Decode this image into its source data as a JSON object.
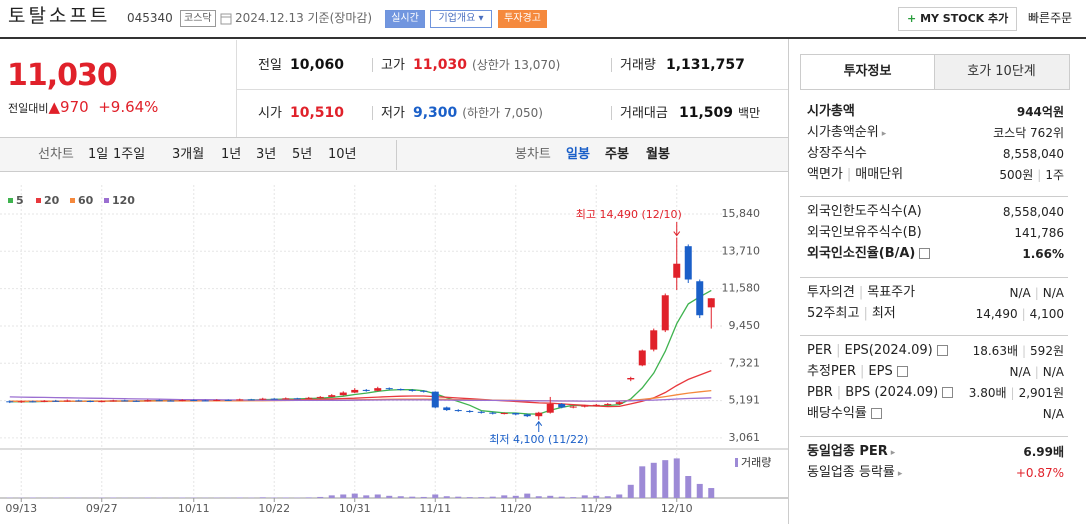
{
  "header": {
    "name": "토탈소프트",
    "code": "045340",
    "market": "코스닥",
    "date": "2024.12.13 기준(장마감)",
    "buttons": [
      "실시간",
      "기업개요",
      "투자경고"
    ],
    "mystock": "MY STOCK 추가",
    "order": "빠른주문"
  },
  "quote": {
    "price": "11,030",
    "change_label": "전일대비",
    "change": "970",
    "rate": "+9.64%",
    "fields": [
      {
        "label": "전일",
        "value": "10,060",
        "color": "#111"
      },
      {
        "label": "고가",
        "value": "11,030",
        "color": "#e0212a",
        "note": "(상한가 13,070)"
      },
      {
        "label": "거래량",
        "value": "1,131,757",
        "color": "#111"
      },
      {
        "label": "시가",
        "value": "10,510",
        "color": "#e0212a"
      },
      {
        "label": "저가",
        "value": "9,300",
        "color": "#1a5fc8",
        "note": "(하한가 7,050)"
      },
      {
        "label": "거래대금",
        "value": "11,509",
        "color": "#111",
        "unit": "백만"
      }
    ]
  },
  "tabs": {
    "line": "선차트",
    "line_periods": [
      "1일",
      "1주일",
      "3개월",
      "1년",
      "3년",
      "5년",
      "10년"
    ],
    "candle": "봉차트",
    "candle_periods": [
      "일봉",
      "주봉",
      "월봉"
    ],
    "selected": "일봉"
  },
  "info": {
    "tabs": [
      "투자정보",
      "호가 10단계"
    ],
    "groups": [
      [
        {
          "label": [
            "시가총액"
          ],
          "value": [
            "944억원"
          ],
          "bold": true
        },
        {
          "label": [
            "시가총액순위"
          ],
          "more": true,
          "value": [
            "코스닥 762위"
          ]
        },
        {
          "label": [
            "상장주식수"
          ],
          "value": [
            "8,558,040"
          ]
        },
        {
          "label": [
            "액면가",
            "매매단위"
          ],
          "value": [
            "500원",
            "1주"
          ]
        }
      ],
      [
        {
          "label": [
            "외국인한도주식수(A)"
          ],
          "value": [
            "8,558,040"
          ]
        },
        {
          "label": [
            "외국인보유주식수(B)"
          ],
          "value": [
            "141,786"
          ]
        },
        {
          "label": [
            "외국인소진율(B/A)"
          ],
          "help": true,
          "bold": true,
          "value": [
            "1.66%"
          ]
        }
      ],
      [
        {
          "label": [
            "투자의견",
            "목표주가"
          ],
          "value": [
            "N/A",
            "N/A"
          ]
        },
        {
          "label": [
            "52주최고",
            "최저"
          ],
          "value": [
            "14,490",
            "4,100"
          ]
        }
      ],
      [
        {
          "label": [
            "PER",
            "EPS(2024.09)"
          ],
          "help": true,
          "value": [
            "18.63배",
            "592원"
          ]
        },
        {
          "label": [
            "추정PER",
            "EPS"
          ],
          "help": true,
          "value": [
            "N/A",
            "N/A"
          ]
        },
        {
          "label": [
            "PBR",
            "BPS (2024.09)"
          ],
          "help": true,
          "value": [
            "3.80배",
            "2,901원"
          ]
        },
        {
          "label": [
            "배당수익률"
          ],
          "help": true,
          "value": [
            "N/A"
          ]
        }
      ],
      [
        {
          "label": [
            "동일업종 PER"
          ],
          "more": true,
          "bold": true,
          "value": [
            "6.99배"
          ]
        },
        {
          "label": [
            "동일업종 등락률"
          ],
          "more": true,
          "value": [
            "+0.87%"
          ],
          "value_color": "#e0212a"
        }
      ]
    ]
  },
  "chart_data": {
    "type": "candlestick",
    "up_color": "#e0212a",
    "down_color": "#1a5fc8",
    "volume_color": "#9d8ad6",
    "volume_label": "거래량",
    "grid": true,
    "categories": [
      null,
      "09/13",
      null,
      null,
      null,
      null,
      null,
      null,
      "09/27",
      null,
      null,
      null,
      null,
      null,
      null,
      null,
      "10/11",
      null,
      null,
      null,
      null,
      null,
      null,
      "10/22",
      null,
      null,
      null,
      null,
      null,
      null,
      "10/31",
      null,
      null,
      null,
      null,
      null,
      null,
      "11/11",
      null,
      null,
      null,
      null,
      null,
      null,
      "11/20",
      null,
      null,
      null,
      null,
      null,
      null,
      "11/29",
      null,
      null,
      null,
      null,
      null,
      null,
      "12/10",
      null,
      null,
      null
    ],
    "open": [
      5150,
      5100,
      5150,
      5120,
      5180,
      5150,
      5200,
      5170,
      5130,
      5160,
      5200,
      5180,
      5150,
      5210,
      5190,
      5170,
      5220,
      5200,
      5180,
      5230,
      5200,
      5260,
      5240,
      5300,
      5280,
      5320,
      5300,
      5350,
      5400,
      5500,
      5650,
      5800,
      5750,
      5900,
      5850,
      5800,
      5750,
      5700,
      4800,
      4650,
      4600,
      4550,
      4500,
      4450,
      4480,
      4400,
      4300,
      4500,
      5000,
      4800,
      4850,
      4900,
      4950,
      5000,
      6400,
      7200,
      8100,
      9200,
      12200,
      14000,
      12000,
      10510
    ],
    "high": [
      5200,
      5200,
      5190,
      5220,
      5230,
      5250,
      5240,
      5200,
      5200,
      5240,
      5240,
      5210,
      5250,
      5250,
      5230,
      5260,
      5250,
      5240,
      5270,
      5260,
      5300,
      5290,
      5350,
      5330,
      5370,
      5350,
      5400,
      5450,
      5560,
      5720,
      5900,
      5850,
      5980,
      5940,
      5880,
      5850,
      5780,
      5720,
      4850,
      4700,
      4650,
      4600,
      4550,
      4520,
      4500,
      4450,
      4550,
      5400,
      5050,
      4900,
      4950,
      5000,
      5050,
      5150,
      6550,
      8100,
      9300,
      11300,
      14490,
      14100,
      12100,
      11030
    ],
    "low": [
      5050,
      5060,
      5080,
      5100,
      5120,
      5120,
      5140,
      5100,
      5100,
      5130,
      5150,
      5120,
      5130,
      5160,
      5140,
      5150,
      5170,
      5150,
      5160,
      5170,
      5180,
      5210,
      5220,
      5250,
      5260,
      5270,
      5280,
      5320,
      5380,
      5480,
      5620,
      5700,
      5720,
      5800,
      5760,
      5700,
      5650,
      4750,
      4600,
      4550,
      4500,
      4450,
      4400,
      4400,
      4350,
      4250,
      4100,
      4450,
      4750,
      4750,
      4800,
      4850,
      4900,
      4950,
      6300,
      7150,
      8000,
      9100,
      11500,
      11900,
      9900,
      9300
    ],
    "close": [
      5100,
      5150,
      5120,
      5180,
      5150,
      5200,
      5170,
      5130,
      5160,
      5200,
      5180,
      5150,
      5210,
      5190,
      5170,
      5220,
      5200,
      5180,
      5230,
      5200,
      5260,
      5240,
      5300,
      5280,
      5320,
      5300,
      5350,
      5400,
      5500,
      5650,
      5800,
      5750,
      5900,
      5850,
      5800,
      5750,
      5700,
      4800,
      4650,
      4600,
      4550,
      4500,
      4450,
      4480,
      4400,
      4300,
      4500,
      5000,
      4800,
      4850,
      4900,
      4950,
      5000,
      5100,
      6480,
      8050,
      9200,
      11200,
      13000,
      12100,
      10060,
      11030
    ],
    "volume": [
      40000,
      30000,
      50000,
      30000,
      40000,
      60000,
      30000,
      20000,
      40000,
      50000,
      30000,
      30000,
      60000,
      40000,
      30000,
      50000,
      40000,
      30000,
      40000,
      30000,
      60000,
      40000,
      80000,
      50000,
      60000,
      40000,
      70000,
      120000,
      300000,
      400000,
      500000,
      300000,
      400000,
      250000,
      200000,
      150000,
      120000,
      400000,
      200000,
      150000,
      100000,
      100000,
      150000,
      300000,
      250000,
      500000,
      200000,
      250000,
      150000,
      100000,
      300000,
      250000,
      200000,
      400000,
      1500000,
      3600000,
      4000000,
      4300000,
      4500000,
      2500000,
      1600000,
      1131757
    ],
    "volume_ylim": [
      0,
      5000000
    ],
    "series": [
      {
        "name": "5",
        "color": "#3fb34f",
        "values": [
          5130,
          5130,
          5130,
          5140,
          5150,
          5160,
          5160,
          5170,
          5160,
          5170,
          5170,
          5160,
          5180,
          5190,
          5180,
          5190,
          5200,
          5190,
          5200,
          5210,
          5220,
          5230,
          5240,
          5260,
          5280,
          5290,
          5310,
          5330,
          5370,
          5440,
          5540,
          5620,
          5720,
          5790,
          5820,
          5810,
          5750,
          5580,
          5350,
          5140,
          4920,
          4620,
          4550,
          4490,
          4480,
          4430,
          4420,
          4640,
          4800,
          4930,
          4890,
          4880,
          4910,
          4960,
          5286,
          5916,
          6766,
          8006,
          9586,
          10710,
          11112,
          11478
        ]
      },
      {
        "name": "20",
        "color": "#e8383d",
        "values": [
          5150,
          5150,
          5150,
          5155,
          5155,
          5160,
          5160,
          5160,
          5165,
          5165,
          5165,
          5170,
          5170,
          5175,
          5175,
          5180,
          5180,
          5185,
          5185,
          5190,
          5195,
          5200,
          5210,
          5220,
          5230,
          5240,
          5250,
          5270,
          5290,
          5310,
          5330,
          5360,
          5390,
          5420,
          5440,
          5450,
          5450,
          5420,
          5380,
          5340,
          5300,
          5260,
          5220,
          5180,
          5140,
          5100,
          5060,
          5040,
          5000,
          4960,
          4920,
          4880,
          4850,
          4860,
          5000,
          5150,
          5350,
          5650,
          6050,
          6400,
          6650,
          6900
        ]
      },
      {
        "name": "60",
        "color": "#f5893d",
        "values": [
          5150,
          5150,
          5150,
          5150,
          5155,
          5155,
          5155,
          5160,
          5160,
          5160,
          5160,
          5165,
          5165,
          5165,
          5170,
          5170,
          5170,
          5175,
          5175,
          5180,
          5180,
          5185,
          5185,
          5190,
          5195,
          5200,
          5205,
          5210,
          5215,
          5225,
          5235,
          5245,
          5255,
          5265,
          5270,
          5275,
          5275,
          5270,
          5260,
          5250,
          5240,
          5230,
          5220,
          5210,
          5200,
          5190,
          5180,
          5175,
          5170,
          5165,
          5160,
          5160,
          5165,
          5170,
          5200,
          5260,
          5330,
          5420,
          5520,
          5620,
          5690,
          5760
        ]
      },
      {
        "name": "120",
        "color": "#9b6fd1",
        "values": [
          5400,
          5390,
          5380,
          5370,
          5360,
          5350,
          5340,
          5330,
          5320,
          5310,
          5300,
          5290,
          5280,
          5270,
          5260,
          5250,
          5245,
          5240,
          5235,
          5230,
          5225,
          5220,
          5215,
          5210,
          5205,
          5200,
          5200,
          5200,
          5205,
          5210,
          5215,
          5220,
          5225,
          5230,
          5230,
          5230,
          5230,
          5225,
          5220,
          5215,
          5210,
          5205,
          5200,
          5195,
          5190,
          5185,
          5180,
          5175,
          5170,
          5165,
          5160,
          5160,
          5160,
          5165,
          5180,
          5200,
          5220,
          5250,
          5280,
          5310,
          5330,
          5350
        ]
      }
    ],
    "ylim": [
      2600,
      16350
    ],
    "yticks": [
      {
        "value": 3061,
        "label": "3,061"
      },
      {
        "value": 5191,
        "label": "5,191"
      },
      {
        "value": 7321,
        "label": "7,321"
      },
      {
        "value": 9450,
        "label": "9,450"
      },
      {
        "value": 11580,
        "label": "11,580"
      },
      {
        "value": 13710,
        "label": "13,710"
      },
      {
        "value": 15840,
        "label": "15,840"
      }
    ],
    "annotations": [
      {
        "text": "최고 14,490 (12/10)"
      },
      {
        "text": "최저 4,100 (11/22)"
      }
    ]
  }
}
